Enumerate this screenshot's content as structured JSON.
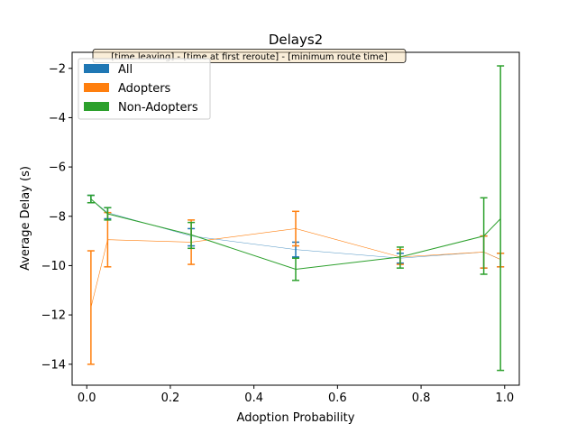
{
  "chart_data": {
    "type": "line",
    "title": "Delays2",
    "xlabel": "Adoption Probability",
    "ylabel": "Average Delay (s)",
    "xlim": [
      -0.035,
      1.035
    ],
    "ylim": [
      -14.85,
      -1.35
    ],
    "xticks": [
      0.0,
      0.2,
      0.4,
      0.6,
      0.8,
      1.0
    ],
    "xtick_labels": [
      "0.0",
      "0.2",
      "0.4",
      "0.6",
      "0.8",
      "1.0"
    ],
    "yticks": [
      -14,
      -12,
      -10,
      -8,
      -6,
      -4,
      -2
    ],
    "ytick_labels": [
      "−14",
      "−12",
      "−10",
      "−8",
      "−6",
      "−4",
      "−2"
    ],
    "annotation": "[time leaving] - [time at first reroute] - [minimum route time]",
    "legend_position": "upper-left",
    "grid": false,
    "series": [
      {
        "name": "All",
        "color": "#1f77b4",
        "x": [
          0.01,
          0.05,
          0.25,
          0.5,
          0.75,
          0.95,
          0.99
        ],
        "y": [
          -7.3,
          -7.85,
          -8.8,
          -9.35,
          -9.7,
          -9.45,
          -9.75
        ],
        "yerr_low": [
          -7.45,
          -8.1,
          -9.2,
          -9.65,
          -9.9,
          -10.1,
          -10.05
        ],
        "yerr_high": [
          -7.15,
          -7.65,
          -8.5,
          -9.05,
          -9.5,
          -8.8,
          -9.5
        ]
      },
      {
        "name": "Adopters",
        "color": "#ff7f0e",
        "x": [
          0.01,
          0.05,
          0.25,
          0.5,
          0.75,
          0.95,
          0.99
        ],
        "y": [
          -11.7,
          -8.95,
          -9.05,
          -8.5,
          -9.65,
          -9.45,
          -9.75
        ],
        "yerr_low": [
          -14.0,
          -10.05,
          -9.95,
          -9.2,
          -9.95,
          -10.1,
          -10.05
        ],
        "yerr_high": [
          -9.4,
          -7.85,
          -8.15,
          -7.8,
          -9.35,
          -8.8,
          -9.5
        ]
      },
      {
        "name": "Non-Adopters",
        "color": "#2ca02c",
        "x": [
          0.01,
          0.05,
          0.25,
          0.5,
          0.75,
          0.95,
          0.99
        ],
        "y": [
          -7.3,
          -7.9,
          -8.75,
          -10.15,
          -9.65,
          -8.8,
          -8.1
        ],
        "yerr_low": [
          -7.45,
          -8.15,
          -9.3,
          -10.6,
          -10.1,
          -10.35,
          -14.25
        ],
        "yerr_high": [
          -7.15,
          -7.65,
          -8.25,
          -9.7,
          -9.25,
          -7.25,
          -1.9
        ]
      }
    ]
  }
}
